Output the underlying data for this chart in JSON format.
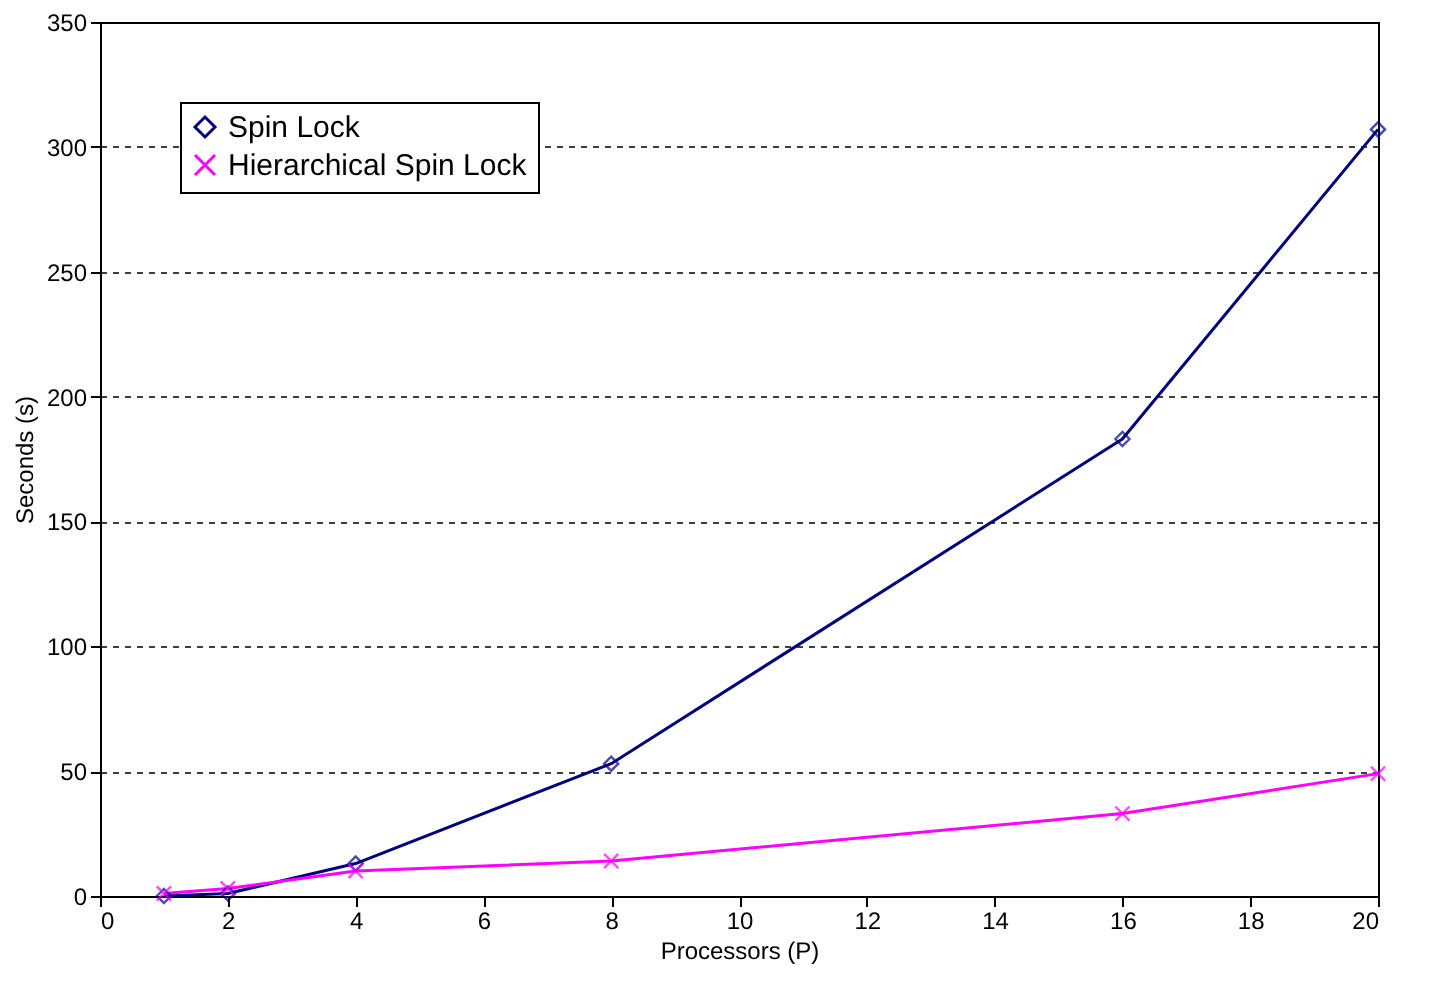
{
  "chart_data": {
    "type": "line",
    "xlabel": "Processors (P)",
    "ylabel": "Seconds (s)",
    "x": [
      1,
      2,
      4,
      8,
      16,
      20
    ],
    "series": [
      {
        "name": "Spin Lock",
        "color": "#000080",
        "marker": "diamond",
        "values": [
          0,
          1,
          13,
          53,
          183,
          307
        ]
      },
      {
        "name": "Hierarchical Spin Lock",
        "color": "#ff00ff",
        "marker": "cross",
        "values": [
          1,
          3,
          10,
          14,
          33,
          49
        ]
      }
    ],
    "xlim": [
      0,
      20
    ],
    "xticks": [
      0,
      2,
      4,
      6,
      8,
      10,
      12,
      14,
      16,
      18,
      20
    ],
    "ylim": [
      0,
      350
    ],
    "yticks": [
      0,
      50,
      100,
      150,
      200,
      250,
      300,
      350
    ],
    "grid": "y",
    "legend": "top left",
    "line_style": "solid"
  }
}
